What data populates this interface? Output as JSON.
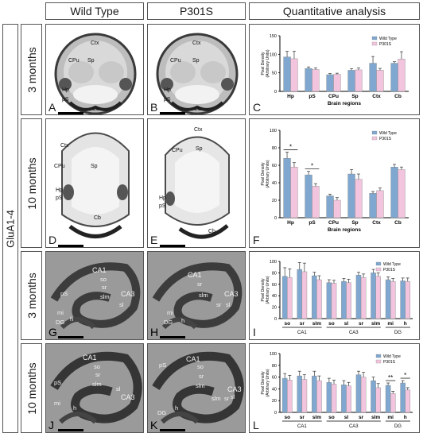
{
  "headers": {
    "col1": "Wild Type",
    "col2": "P301S",
    "col3": "Quantitative analysis"
  },
  "side_label": "GluA1-4",
  "row_labels": [
    "3 months",
    "10 months",
    "3 months",
    "10 months"
  ],
  "panel_letters": [
    "A",
    "B",
    "C",
    "D",
    "E",
    "F",
    "G",
    "H",
    "I",
    "J",
    "K",
    "L"
  ],
  "brain_labels": {
    "ctx": "Ctx",
    "cpu": "CPu",
    "sp": "Sp",
    "hp": "Hp",
    "ps": "pS",
    "cb": "Cb"
  },
  "hippo_labels": {
    "ca1": "CA1",
    "ca3": "CA3",
    "so": "so",
    "sr": "sr",
    "slm": "slm",
    "sl": "sl",
    "ps": "pS",
    "mi": "mi",
    "h": "h",
    "dg": "DG"
  },
  "colors": {
    "wild_type": "#7fa7cf",
    "p301s": "#f2c4dd"
  },
  "chart_data": [
    {
      "type": "bar",
      "categories": [
        "Hp",
        "pS",
        "CPu",
        "Sp",
        "Ctx",
        "Cb"
      ],
      "series": [
        {
          "name": "Wild Type",
          "values": [
            93,
            62,
            45,
            57,
            76,
            76
          ],
          "errors": [
            15,
            4,
            3,
            4,
            18,
            4
          ]
        },
        {
          "name": "P301S",
          "values": [
            88,
            59,
            46,
            58,
            57,
            87
          ],
          "errors": [
            20,
            4,
            3,
            5,
            5,
            20
          ]
        }
      ],
      "ylabel": "Pixel Density (Arbitrary Units)",
      "xlabel": "Brain regions",
      "ylim": [
        0,
        150
      ],
      "yticks": [
        0,
        50,
        100,
        150
      ],
      "legend": "top-right",
      "significance": []
    },
    {
      "type": "bar",
      "categories": [
        "Hp",
        "pS",
        "CPu",
        "Sp",
        "Ctx",
        "Cb"
      ],
      "series": [
        {
          "name": "Wild Type",
          "values": [
            68,
            49,
            25,
            50,
            28,
            58
          ],
          "errors": [
            7,
            4,
            2,
            5,
            2,
            3
          ]
        },
        {
          "name": "P301S",
          "values": [
            58,
            36,
            20,
            44,
            31,
            55
          ],
          "errors": [
            5,
            3,
            3,
            6,
            3,
            3
          ]
        }
      ],
      "ylabel": "Pixel Density (Arbitrary Units)",
      "xlabel": "Brain regions",
      "ylim": [
        0,
        100
      ],
      "yticks": [
        0,
        20,
        40,
        60,
        80,
        100
      ],
      "legend": "top-right",
      "significance": [
        {
          "category": 0,
          "mark": "*"
        },
        {
          "category": 1,
          "mark": "*"
        }
      ]
    },
    {
      "type": "bar",
      "categories": [
        "so",
        "sr",
        "slm",
        "so",
        "sl",
        "sr",
        "slm",
        "mi",
        "h"
      ],
      "groups": [
        {
          "label": "CA1",
          "from": 0,
          "to": 2
        },
        {
          "label": "CA3",
          "from": 3,
          "to": 6
        },
        {
          "label": "DG",
          "from": 7,
          "to": 8
        }
      ],
      "series": [
        {
          "name": "Wild Type",
          "values": [
            74,
            86,
            75,
            63,
            65,
            76,
            80,
            68,
            66
          ],
          "errors": [
            15,
            12,
            6,
            5,
            5,
            5,
            6,
            5,
            5
          ]
        },
        {
          "name": "P301S",
          "values": [
            72,
            82,
            68,
            62,
            63,
            72,
            74,
            65,
            65
          ],
          "errors": [
            15,
            15,
            7,
            5,
            6,
            6,
            6,
            5,
            6
          ]
        }
      ],
      "ylabel": "Pixel Density (Arbitrary Units)",
      "ylim": [
        0,
        100
      ],
      "yticks": [
        0,
        20,
        40,
        60,
        80,
        100
      ],
      "legend": "top-right",
      "significance": []
    },
    {
      "type": "bar",
      "categories": [
        "so",
        "sr",
        "slm",
        "so",
        "sl",
        "sr",
        "slm",
        "mi",
        "h"
      ],
      "groups": [
        {
          "label": "CA1",
          "from": 0,
          "to": 2
        },
        {
          "label": "CA3",
          "from": 3,
          "to": 6
        },
        {
          "label": "DG",
          "from": 7,
          "to": 8
        }
      ],
      "series": [
        {
          "name": "Wild Type",
          "values": [
            58,
            62,
            62,
            51,
            47,
            64,
            54,
            46,
            50
          ],
          "errors": [
            8,
            8,
            8,
            7,
            7,
            6,
            6,
            4,
            4
          ]
        },
        {
          "name": "P301S",
          "values": [
            55,
            56,
            54,
            48,
            45,
            60,
            42,
            32,
            38
          ],
          "errors": [
            8,
            8,
            8,
            7,
            6,
            8,
            7,
            4,
            4
          ]
        }
      ],
      "ylabel": "Pixel Density (Arbitrary Units)",
      "ylim": [
        0,
        100
      ],
      "yticks": [
        0,
        20,
        40,
        60,
        80,
        100
      ],
      "legend": "top-right",
      "significance": [
        {
          "category": 7,
          "mark": "**"
        },
        {
          "category": 8,
          "mark": "*"
        }
      ]
    }
  ]
}
